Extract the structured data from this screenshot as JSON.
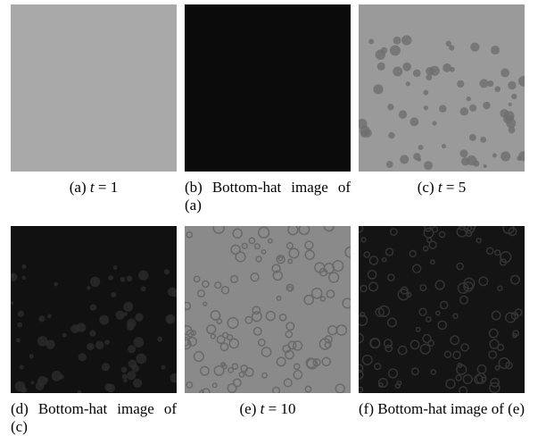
{
  "panels": [
    {
      "label": "(a)",
      "math_var": "t",
      "math_rest": "= 1"
    },
    {
      "label": "(b)",
      "text": "Bottom-hat image of (a)"
    },
    {
      "label": "(c)",
      "math_var": "t",
      "math_rest": "= 5"
    },
    {
      "label": "(d)",
      "text": "Bottom-hat image of (c)"
    },
    {
      "label": "(e)",
      "math_var": "t",
      "math_rest": "= 10"
    },
    {
      "label": "(f)",
      "text": "Bottom-hat image of (e)"
    }
  ]
}
